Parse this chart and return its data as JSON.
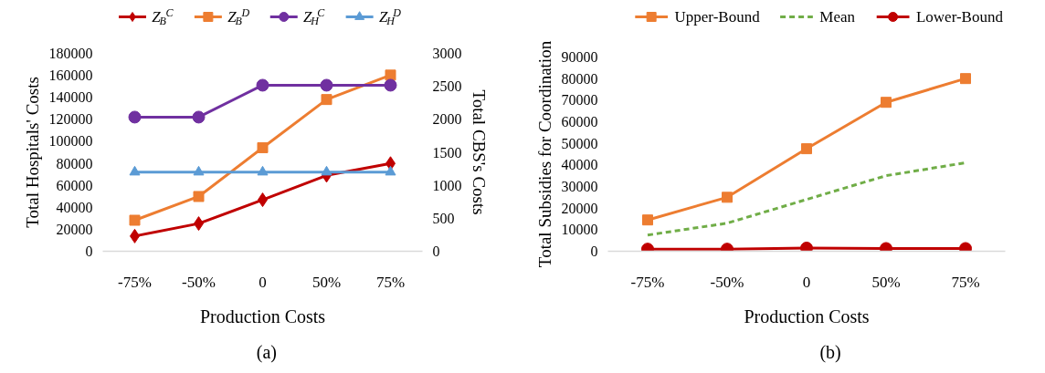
{
  "chart_data": [
    {
      "type": "line",
      "categories": [
        "-75%",
        "-50%",
        "0",
        "50%",
        "75%"
      ],
      "xlabel": "Production Costs",
      "ylabel": "Total Hospitals' Costs",
      "y2label": "Total CBS's Costs",
      "ylim": [
        0,
        180000
      ],
      "yticks": [
        0,
        20000,
        40000,
        60000,
        80000,
        100000,
        120000,
        140000,
        160000,
        180000
      ],
      "y2lim": [
        0,
        3000
      ],
      "y2ticks": [
        0,
        500,
        1000,
        1500,
        2000,
        2500,
        3000
      ],
      "grid": false,
      "legend": "top",
      "annotations": [
        "(a)"
      ],
      "series": [
        {
          "name": "Z$_{B}$$^{C}$",
          "color": "#c00000",
          "marker": "diamond",
          "axis": "y2",
          "values": [
            230,
            420,
            780,
            1150,
            1330
          ]
        },
        {
          "name": "Z$_{B}$$^{D}$",
          "color": "#ed7d31",
          "marker": "square",
          "axis": "y2",
          "values": [
            470,
            830,
            1570,
            2300,
            2670
          ]
        },
        {
          "name": "Z$_{H}$$^{C}$",
          "color": "#7030a0",
          "marker": "circle",
          "values": [
            122000,
            122000,
            151000,
            151000,
            151000
          ]
        },
        {
          "name": "Z$_{H}$$^{D}$",
          "color": "#5b9bd5",
          "marker": "triangle",
          "values": [
            72000,
            72000,
            72000,
            72000,
            72000
          ]
        }
      ]
    },
    {
      "type": "line",
      "categories": [
        "-75%",
        "-50%",
        "0",
        "50%",
        "75%"
      ],
      "xlabel": "Production Costs",
      "ylabel": "Total Subsidies for Coordination",
      "ylim": [
        0,
        90000
      ],
      "yticks": [
        0,
        10000,
        20000,
        30000,
        40000,
        50000,
        60000,
        70000,
        80000,
        90000
      ],
      "grid": false,
      "legend": "top",
      "annotations": [
        "(b)"
      ],
      "series": [
        {
          "name": "Upper-Bound",
          "color": "#ed7d31",
          "marker": "square",
          "values": [
            14500,
            25000,
            47500,
            69000,
            80000
          ]
        },
        {
          "name": "Mean",
          "color": "#70ad47",
          "marker": "none",
          "line_style": "dashed",
          "values": [
            7500,
            13000,
            24000,
            35000,
            41000
          ]
        },
        {
          "name": "Lower-Bound",
          "color": "#c00000",
          "marker": "circle",
          "values": [
            1000,
            1000,
            1500,
            1300,
            1300
          ]
        }
      ]
    }
  ]
}
